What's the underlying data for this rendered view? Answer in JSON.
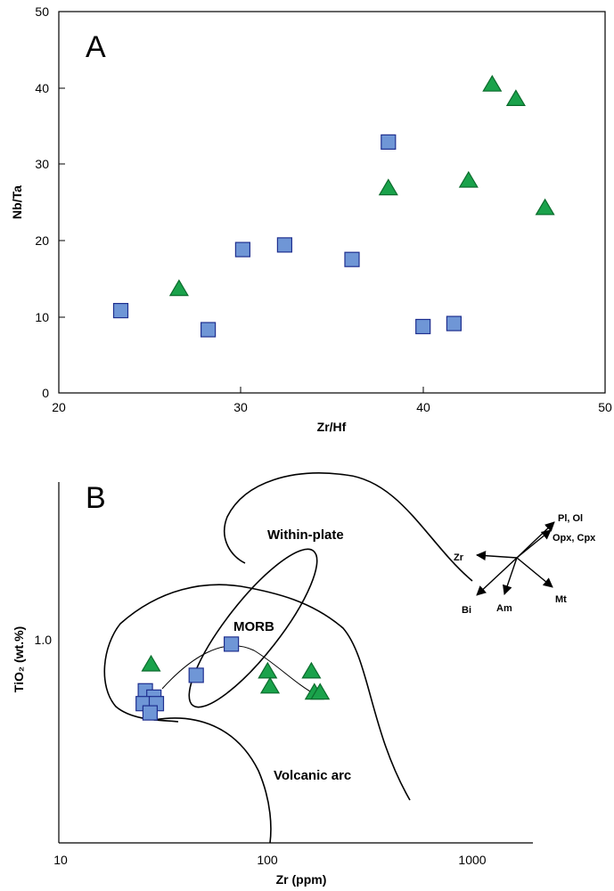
{
  "chart_data": [
    {
      "panel": "A",
      "type": "scatter",
      "xlabel": "Zr/Hf",
      "ylabel": "Nb/Ta",
      "xlim": [
        20,
        50
      ],
      "ylim": [
        0,
        50
      ],
      "x_ticks": [
        "20",
        "30",
        "40",
        "50"
      ],
      "y_ticks": [
        "0",
        "10",
        "20",
        "30",
        "40",
        "50"
      ],
      "grid": false,
      "legend": "none",
      "series": [
        {
          "marker": "square",
          "color": "#6f96d6",
          "points": [
            [
              23.4,
              10.8
            ],
            [
              28.2,
              8.3
            ],
            [
              30.1,
              18.8
            ],
            [
              32.4,
              19.4
            ],
            [
              36.1,
              17.5
            ],
            [
              38.1,
              32.9
            ],
            [
              40.0,
              8.7
            ],
            [
              41.7,
              9.1
            ]
          ]
        },
        {
          "marker": "triangle",
          "color": "#1aa24b",
          "points": [
            [
              26.6,
              13.6
            ],
            [
              38.1,
              26.8
            ],
            [
              42.5,
              27.8
            ],
            [
              43.8,
              40.4
            ],
            [
              45.1,
              38.5
            ],
            [
              46.7,
              24.2
            ]
          ]
        }
      ]
    },
    {
      "panel": "B",
      "type": "scatter",
      "xlabel": "Zr (ppm)",
      "ylabel": "TiO₂ (wt.%)",
      "xscale": "log",
      "yscale": "log",
      "x_ticks": [
        "10",
        "100",
        "1000"
      ],
      "y_ticks": [
        "1.0"
      ],
      "grid": false,
      "legend": "none",
      "fields": [
        "Within-plate",
        "MORB",
        "Volcanic arc"
      ],
      "vectors": [
        "Pl, Ol",
        "Opx, Cpx",
        "Zr",
        "Bi",
        "Am",
        "Mt"
      ],
      "series": [
        {
          "marker": "square",
          "color": "#6f96d6",
          "points": [
            [
              25.8,
              0.7
            ],
            [
              28.4,
              0.67
            ],
            [
              25.2,
              0.64
            ],
            [
              29.2,
              0.64
            ],
            [
              27.2,
              0.6
            ],
            [
              45.6,
              0.78
            ],
            [
              67.5,
              0.97
            ]
          ]
        },
        {
          "marker": "triangle",
          "color": "#1aa24b",
          "points": [
            [
              27.5,
              0.84
            ],
            [
              101.3,
              0.8
            ],
            [
              165.2,
              0.8
            ],
            [
              104.1,
              0.72
            ],
            [
              171.0,
              0.69
            ],
            [
              182.3,
              0.69
            ]
          ]
        }
      ]
    }
  ]
}
